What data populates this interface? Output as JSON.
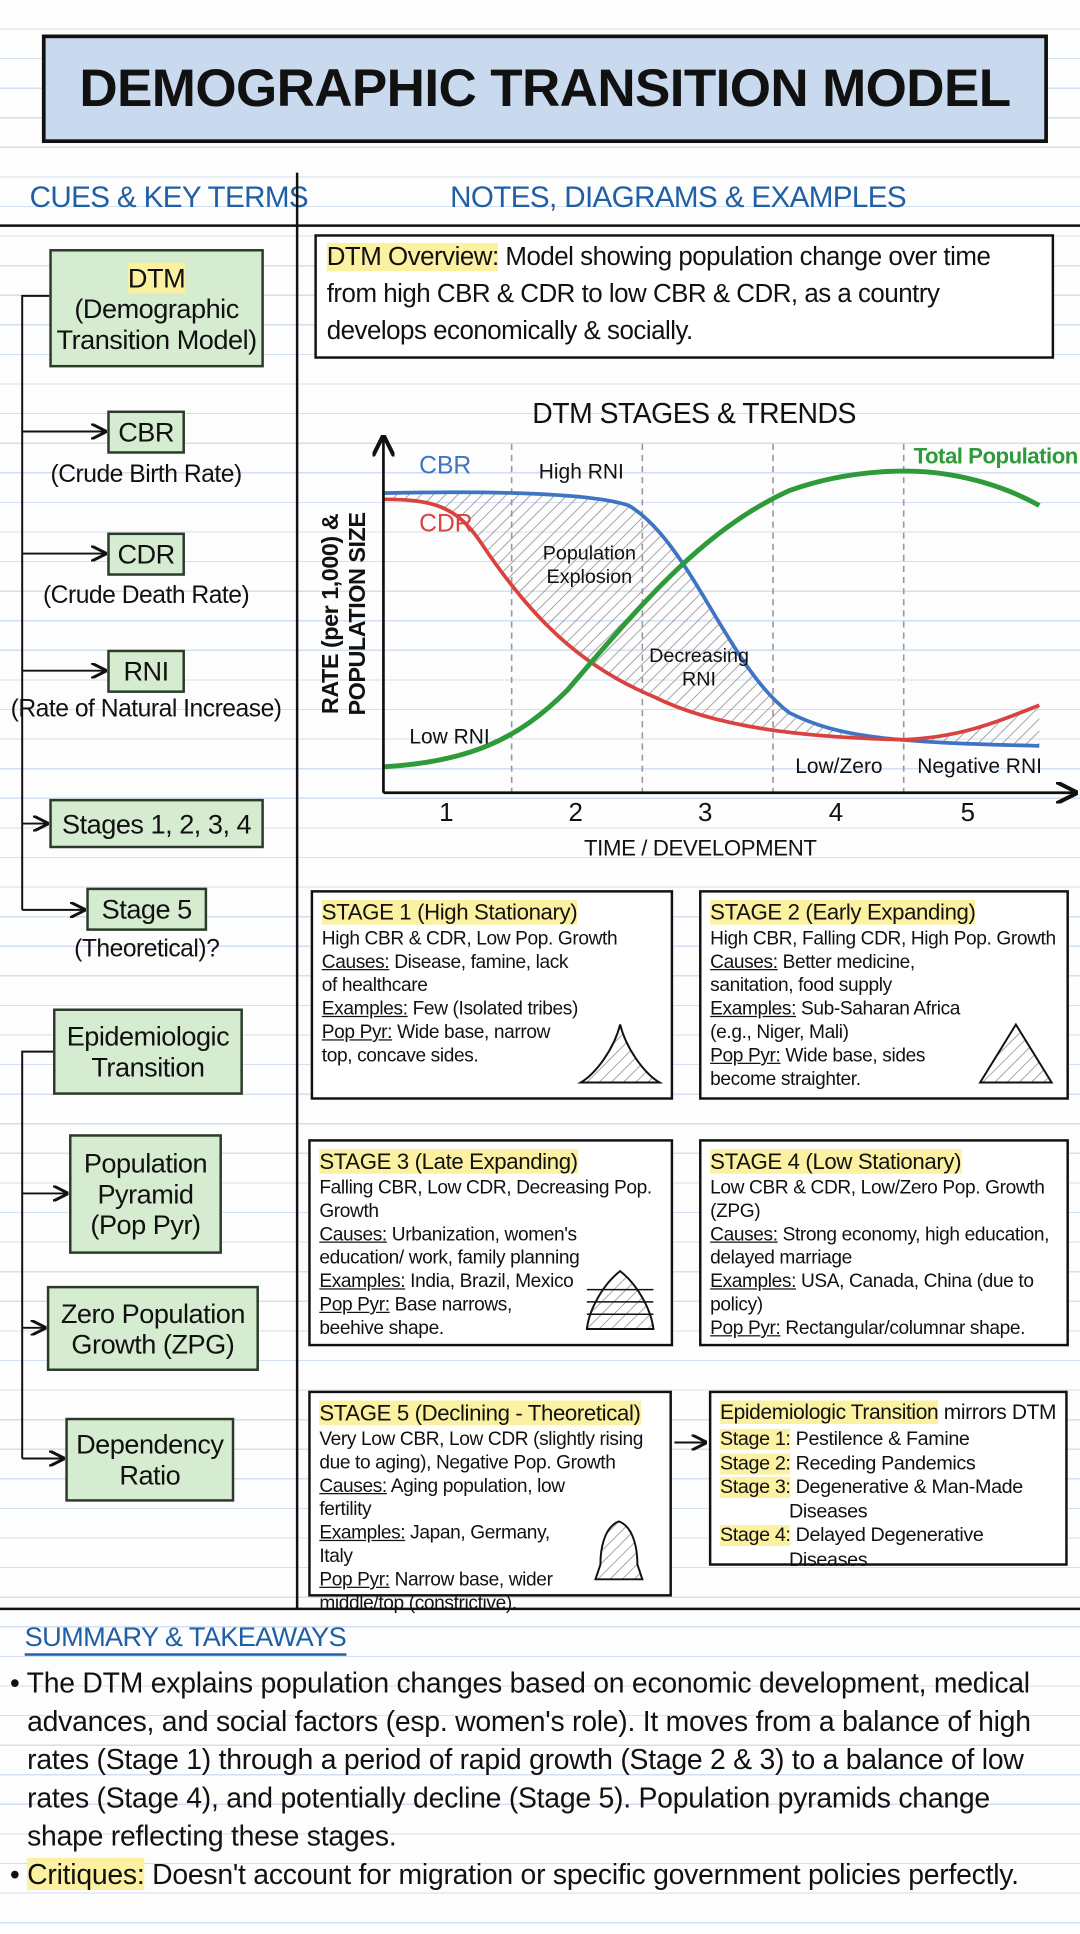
{
  "title": "DEMOGRAPHIC TRANSITION MODEL",
  "cues": {
    "heading": "CUES & KEY TERMS",
    "items": [
      {
        "term": "DTM",
        "desc": "(Demographic Transition Model)"
      },
      {
        "term": "CBR",
        "desc": "(Crude Birth Rate)"
      },
      {
        "term": "CDR",
        "desc": "(Crude Death Rate)"
      },
      {
        "term": "RNI",
        "desc": "(Rate of Natural Increase)"
      },
      {
        "term": "Stages 1, 2, 3, 4"
      },
      {
        "term": "Stage 5",
        "desc": "(Theoretical)?"
      },
      {
        "term": "Epidemiologic Transition"
      },
      {
        "term": "Population Pyramid (Pop Pyr)"
      },
      {
        "term": "Zero Population Growth (ZPG)"
      },
      {
        "term": "Dependency Ratio"
      }
    ]
  },
  "notes_heading": "NOTES, DIAGRAMS & EXAMPLES",
  "overview": {
    "label": "DTM Overview:",
    "text": "Model showing population change over time from high CBR & CDR to low CBR & CDR, as a country develops economically & socially."
  },
  "diagram": {
    "title": "DTM STAGES & TRENDS",
    "y_label": "RATE (per 1,000) & POPULATION SIZE",
    "x_label": "TIME / DEVELOPMENT",
    "stages": [
      "1",
      "2",
      "3",
      "4",
      "5"
    ],
    "labels": {
      "cbr": "CBR",
      "cdr": "CDR",
      "total": "Total Population",
      "high_rni": "High RNI",
      "explosion": "Population Explosion",
      "decreasing": "Decreasing RNI",
      "low_rni": "Low RNI",
      "low_zero": "Low/Zero",
      "negative": "Negative RNI"
    }
  },
  "stages": [
    {
      "title": "STAGE 1 (High Stationary)",
      "summary": "High CBR & CDR, Low Pop. Growth",
      "causes_label": "Causes:",
      "causes": "Disease, famine, lack of healthcare",
      "examples_label": "Examples:",
      "examples": "Few (Isolated tribes)",
      "pyr_label": "Pop Pyr:",
      "pyr": "Wide base, narrow top, concave sides."
    },
    {
      "title": "STAGE 2 (Early Expanding)",
      "summary": "High CBR, Falling CDR, High Pop. Growth",
      "causes_label": "Causes:",
      "causes": "Better medicine, sanitation, food supply",
      "examples_label": "Examples:",
      "examples": "Sub-Saharan Africa (e.g., Niger, Mali)",
      "pyr_label": "Pop Pyr:",
      "pyr": "Wide base, sides become straighter."
    },
    {
      "title": "STAGE 3 (Late Expanding)",
      "summary": "Falling CBR, Low CDR, Decreasing Pop. Growth",
      "causes_label": "Causes:",
      "causes": "Urbanization, women's education/ work, family planning",
      "examples_label": "Examples:",
      "examples": "India, Brazil, Mexico",
      "pyr_label": "Pop Pyr:",
      "pyr": "Base narrows, beehive shape."
    },
    {
      "title": "STAGE 4 (Low Stationary)",
      "summary": "Low CBR & CDR, Low/Zero Pop. Growth (ZPG)",
      "causes_label": "Causes:",
      "causes": "Strong economy, high education, delayed marriage",
      "examples_label": "Examples:",
      "examples": "USA, Canada, China (due to policy)",
      "pyr_label": "Pop Pyr:",
      "pyr": "Rectangular/columnar shape."
    },
    {
      "title": "STAGE 5 (Declining - Theoretical)",
      "summary": "Very Low CBR, Low CDR (slightly rising due to aging), Negative Pop. Growth",
      "causes_label": "Causes:",
      "causes": "Aging population, low fertility",
      "examples_label": "Examples:",
      "examples": "Japan, Germany, Italy",
      "pyr_label": "Pop Pyr:",
      "pyr": "Narrow base, wider middle/top (constrictive)."
    }
  ],
  "epidemiologic": {
    "title": "Epidemiologic Transition",
    "title_rest": "mirrors DTM",
    "items": [
      {
        "label": "Stage 1:",
        "text": "Pestilence & Famine"
      },
      {
        "label": "Stage 2:",
        "text": "Receding Pandemics"
      },
      {
        "label": "Stage 3:",
        "text": "Degenerative & Man-Made Diseases"
      },
      {
        "label": "Stage 4:",
        "text": "Delayed Degenerative Diseases"
      }
    ]
  },
  "summary": {
    "heading": "SUMMARY & TAKEAWAYS",
    "bullet1": "The DTM explains population changes based on economic development, medical advances, and social factors (esp. women's role). It moves from a balance of high rates (Stage 1) through a period of rapid growth (Stage 2 & 3) to a balance of low rates (Stage 4), and potentially decline (Stage 5). Population pyramids change shape reflecting these stages.",
    "critiques_label": "Critiques:",
    "critiques": "Doesn't account for migration or specific government policies perfectly."
  }
}
